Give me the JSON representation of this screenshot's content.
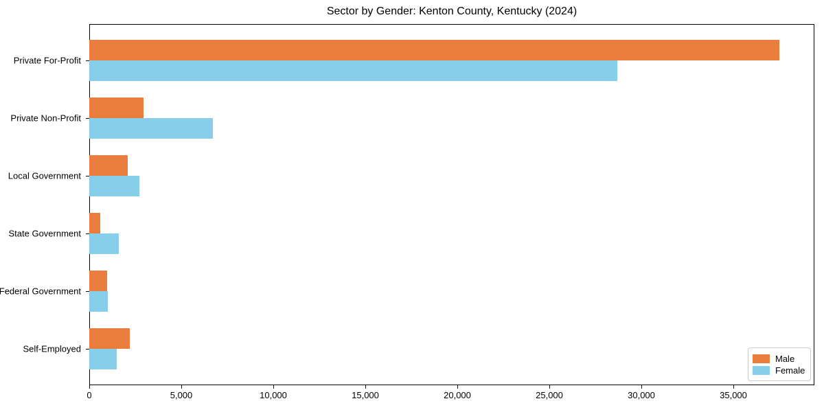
{
  "chart_data": {
    "type": "bar",
    "orientation": "horizontal",
    "title": "Sector by Gender: Kenton County, Kentucky (2024)",
    "categories": [
      "Private For-Profit",
      "Private Non-Profit",
      "Local Government",
      "State Government",
      "Federal Government",
      "Self-Employed"
    ],
    "series": [
      {
        "name": "Male",
        "color": "#e87d3e",
        "values": [
          37500,
          2950,
          2090,
          600,
          970,
          2210
        ]
      },
      {
        "name": "Female",
        "color": "#87ceeb",
        "values": [
          28700,
          6700,
          2720,
          1600,
          1000,
          1490
        ]
      }
    ],
    "xlabel": "",
    "ylabel": "",
    "xlim": [
      0,
      39400
    ],
    "x_ticks": {
      "values": [
        0,
        5000,
        10000,
        15000,
        20000,
        25000,
        30000,
        35000
      ],
      "labels": [
        "0",
        "5,000",
        "10,000",
        "15,000",
        "20,000",
        "25,000",
        "30,000",
        "35,000"
      ]
    },
    "grid": false,
    "legend": {
      "position": "lower right"
    },
    "colors": {
      "male": "#e87d3e",
      "female": "#87ceeb",
      "spine": "#000000",
      "legend_border": "#cccccc",
      "text": "#000000"
    }
  }
}
